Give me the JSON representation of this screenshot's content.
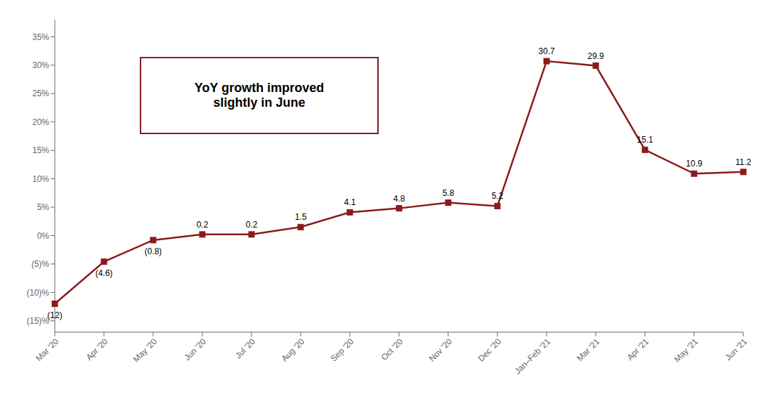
{
  "chart_data": {
    "type": "line",
    "categories": [
      "Mar '20",
      "Apr '20",
      "May '20",
      "Jun '20",
      "Jul '20",
      "Aug '20",
      "Sep '20",
      "Oct '20",
      "Nov '20",
      "Dec '20",
      "Jan–Feb '21",
      "Mar '21",
      "Apr '21",
      "May '21",
      "Jun '21"
    ],
    "values": [
      -12,
      -4.6,
      -0.8,
      0.2,
      0.2,
      1.5,
      4.1,
      4.8,
      5.8,
      5.2,
      30.7,
      29.9,
      15.1,
      10.9,
      11.2
    ],
    "value_labels": [
      "(12)",
      "(4.6)",
      "(0.8)",
      "0.2",
      "0.2",
      "1.5",
      "4.1",
      "4.8",
      "5.8",
      "5.2",
      "30.7",
      "29.9",
      "15.1",
      "10.9",
      "11.2"
    ],
    "data_labels": true,
    "color": "#8B1A1A",
    "marker": "square",
    "ylim": [
      -17,
      38
    ],
    "yticks": [
      {
        "value": -15,
        "label": "(15)%"
      },
      {
        "value": -10,
        "label": "(10)%"
      },
      {
        "value": -5,
        "label": "(5)%"
      },
      {
        "value": 0,
        "label": "0%"
      },
      {
        "value": 5,
        "label": "5%"
      },
      {
        "value": 10,
        "label": "10%"
      },
      {
        "value": 15,
        "label": "15%"
      },
      {
        "value": 20,
        "label": "20%"
      },
      {
        "value": 25,
        "label": "25%"
      },
      {
        "value": 30,
        "label": "30%"
      },
      {
        "value": 35,
        "label": "35%"
      }
    ],
    "grid": false,
    "annotations": [
      "YoY growth improved\nslightly in June"
    ]
  }
}
